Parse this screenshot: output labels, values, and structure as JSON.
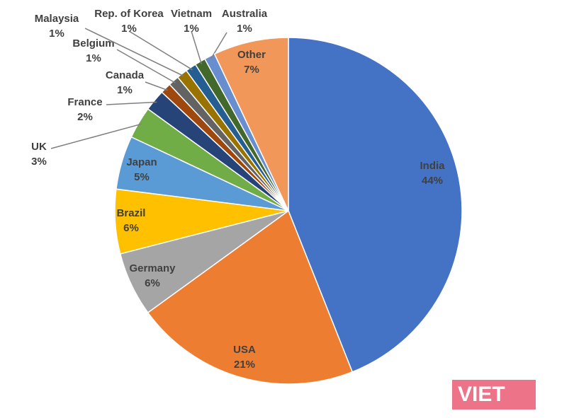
{
  "chart_data": {
    "type": "pie",
    "categories": [
      "India",
      "USA",
      "Germany",
      "Brazil",
      "Japan",
      "UK",
      "France",
      "Canada",
      "Belgium",
      "Malaysia",
      "Rep. of Korea",
      "Vietnam",
      "Australia",
      "Other"
    ],
    "values": [
      44,
      21,
      6,
      6,
      5,
      3,
      2,
      1,
      1,
      1,
      1,
      1,
      1,
      7
    ],
    "value_labels": [
      "44%",
      "21%",
      "6%",
      "6%",
      "5%",
      "3%",
      "2%",
      "1%",
      "1%",
      "1%",
      "1%",
      "1%",
      "1%",
      "7%"
    ],
    "colors": [
      "#4472c4",
      "#ed7d31",
      "#a5a5a5",
      "#ffc000",
      "#5b9bd5",
      "#70ad47",
      "#264478",
      "#9e480e",
      "#636363",
      "#997300",
      "#255e91",
      "#43682b",
      "#698ed0",
      "#f1975a"
    ]
  },
  "watermark": "VIET"
}
